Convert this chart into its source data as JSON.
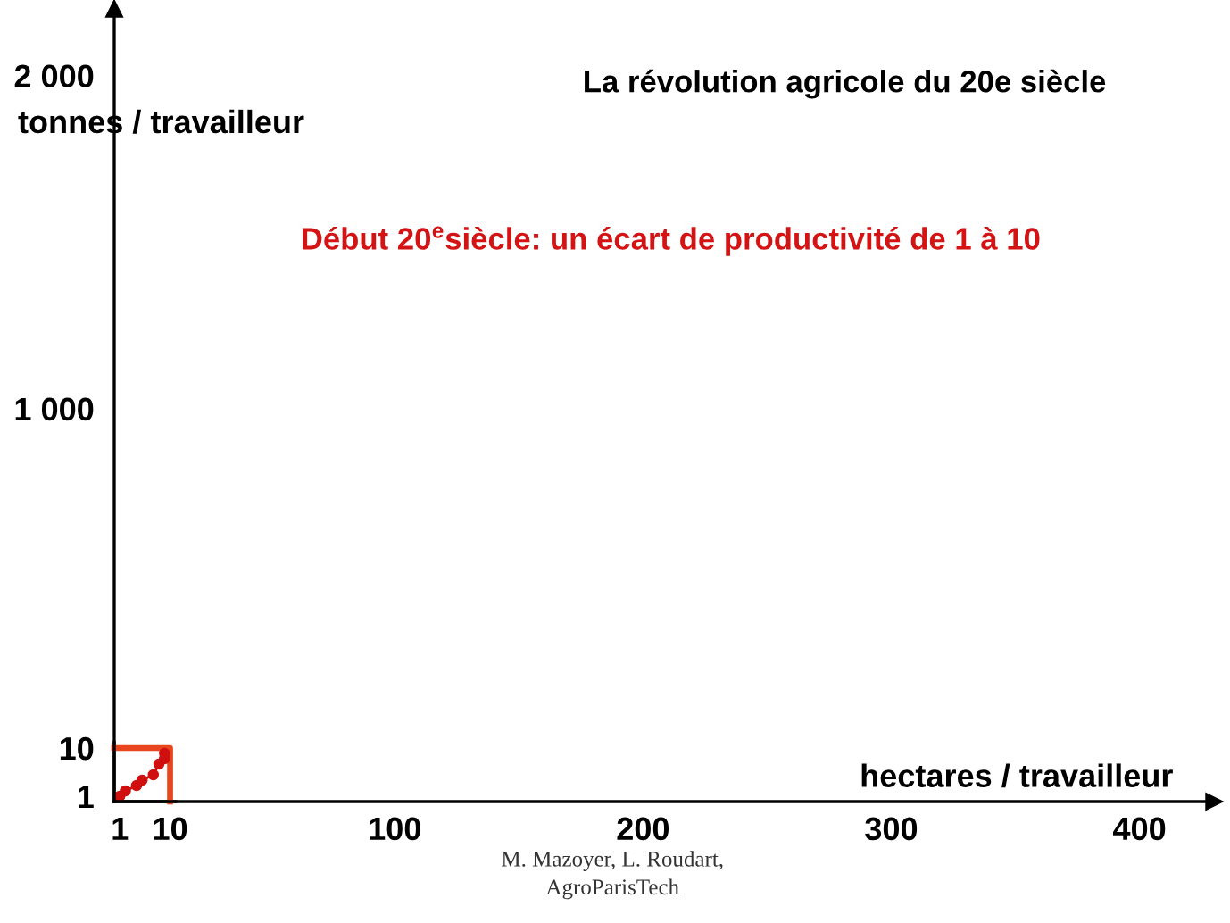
{
  "chart_data": [
    {
      "type": "line",
      "title": "La révolution agricole du 20e siècle",
      "xlabel": "hectares / travailleur",
      "ylabel": "tonnes / travailleur",
      "annotations": [
        "Début 20$^{e}$siècle: un écart de productivité de 1 à 10",
        "M. Mazoyer, L. Roudart,\nAgroParisTech"
      ],
      "xlim": [
        -13,
        430
      ],
      "xticks": [
        100,
        200,
        300,
        400
      ],
      "ylim": [
        -180,
        2200
      ],
      "yticks": [
        {
          "value": 1000,
          "label": "1 000"
        },
        {
          "value": 2000,
          "label": "2 000"
        }
      ]
    },
    {
      "type": "line",
      "series": [
        {
          "color": "#e8461e",
          "x": [
            0,
            10,
            10
          ],
          "values": [
            10,
            10,
            0
          ]
        },
        {
          "color": "#d01010",
          "marker": "circle",
          "x": [
            1,
            2,
            4,
            5,
            7,
            8,
            9,
            9
          ],
          "values": [
            1,
            2,
            3,
            4,
            5,
            7,
            8,
            9
          ]
        }
      ],
      "xlim": [
        0,
        11
      ],
      "xticks": [
        1,
        10
      ],
      "ylim": [
        0,
        11
      ],
      "yticks": [
        1,
        10
      ]
    }
  ]
}
